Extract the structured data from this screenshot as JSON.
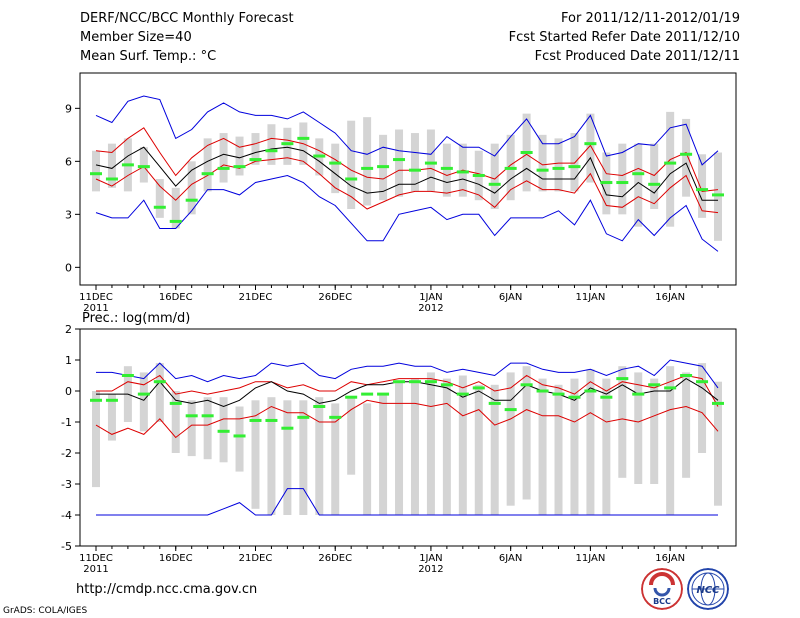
{
  "header": {
    "title": "DERF/NCC/BCC Monthly Forecast",
    "member_size": "Member Size=40",
    "variable": "Mean Surf. Temp.: °C",
    "forecast_range": "For 2011/12/11-2012/01/19",
    "started": "Fcst Started Refer Date 2011/12/10",
    "produced": "Fcst Produced Date 2011/12/11"
  },
  "footer": {
    "url": "http://cmdp.ncc.cma.gov.cn",
    "credit": "GrADS: COLA/IGES",
    "logo1_text": "BCC",
    "logo2_text": "NCC"
  },
  "colors": {
    "max": "#0000dd",
    "pct": "#dd0000",
    "mean": "#000000",
    "median": "#33ee33",
    "box": "#d4d4d4"
  },
  "chart_data": [
    {
      "type": "line",
      "title": "Mean Surf. Temp.: °C",
      "ylim": [
        -1,
        11
      ],
      "yticks": [
        0,
        3,
        6,
        9
      ],
      "xticks": [
        {
          "day": 0,
          "label": "11DEC",
          "sub": "2011"
        },
        {
          "day": 5,
          "label": "16DEC"
        },
        {
          "day": 10,
          "label": "21DEC"
        },
        {
          "day": 15,
          "label": "26DEC"
        },
        {
          "day": 21,
          "label": "1JAN",
          "sub": "2012"
        },
        {
          "day": 26,
          "label": "6JAN"
        },
        {
          "day": 31,
          "label": "11JAN"
        },
        {
          "day": 36,
          "label": "16JAN"
        }
      ],
      "days": 40,
      "box_low": [
        4.3,
        4.5,
        4.3,
        4.8,
        2.8,
        2.2,
        3.0,
        4.3,
        4.8,
        5.2,
        5.8,
        5.8,
        5.8,
        5.8,
        5.2,
        4.2,
        3.3,
        3.5,
        3.8,
        4.0,
        4.3,
        4.3,
        4.0,
        4.0,
        3.8,
        3.3,
        3.8,
        4.3,
        4.3,
        4.3,
        4.3,
        4.8,
        3.0,
        3.0,
        2.3,
        3.3,
        2.3,
        4.0,
        2.8,
        1.5
      ],
      "box_high": [
        6.6,
        7.0,
        7.3,
        6.8,
        5.0,
        4.5,
        6.0,
        7.3,
        7.6,
        7.4,
        7.6,
        8.1,
        7.9,
        8.2,
        7.3,
        7.0,
        8.3,
        8.5,
        7.5,
        7.8,
        7.6,
        7.8,
        7.0,
        7.0,
        6.6,
        7.0,
        7.5,
        8.7,
        7.5,
        7.3,
        7.6,
        8.7,
        6.5,
        7.0,
        7.0,
        7.0,
        8.8,
        8.4,
        6.4,
        6.5
      ],
      "median": [
        5.3,
        5.0,
        5.8,
        5.7,
        3.4,
        2.6,
        3.8,
        5.3,
        5.6,
        5.7,
        6.1,
        6.6,
        7.0,
        7.3,
        6.3,
        5.9,
        5.0,
        5.6,
        5.7,
        6.1,
        5.5,
        5.9,
        5.6,
        5.4,
        5.2,
        4.7,
        5.6,
        6.5,
        5.5,
        5.6,
        5.7,
        7.0,
        4.8,
        4.8,
        5.3,
        4.7,
        5.9,
        6.4,
        4.4,
        4.1
      ],
      "series": [
        {
          "name": "max",
          "color_key": "max",
          "values": [
            8.6,
            8.2,
            9.4,
            9.7,
            9.5,
            7.3,
            7.8,
            8.8,
            9.3,
            8.8,
            8.6,
            8.6,
            8.4,
            8.8,
            8.2,
            7.6,
            6.6,
            6.4,
            6.8,
            6.6,
            6.5,
            6.4,
            7.4,
            6.8,
            6.8,
            6.3,
            7.4,
            8.4,
            7.0,
            7.0,
            7.4,
            8.6,
            6.3,
            6.5,
            7.0,
            6.9,
            7.9,
            8.1,
            5.8,
            6.6
          ]
        },
        {
          "name": "p90",
          "color_key": "pct",
          "values": [
            6.6,
            6.5,
            7.3,
            7.9,
            6.5,
            5.2,
            6.2,
            6.9,
            7.3,
            6.8,
            7.0,
            7.3,
            7.2,
            7.0,
            6.6,
            6.1,
            5.5,
            5.1,
            5.0,
            5.5,
            5.5,
            5.6,
            5.2,
            5.5,
            5.3,
            5.0,
            5.8,
            6.4,
            5.8,
            5.9,
            5.9,
            6.9,
            5.3,
            5.2,
            5.6,
            5.2,
            6.1,
            6.5,
            4.3,
            4.4
          ]
        },
        {
          "name": "mean",
          "color_key": "mean",
          "values": [
            5.8,
            5.6,
            6.3,
            6.8,
            5.7,
            4.6,
            5.5,
            6.0,
            6.4,
            6.2,
            6.5,
            6.7,
            6.8,
            6.6,
            6.0,
            5.3,
            4.6,
            4.2,
            4.3,
            4.7,
            4.7,
            5.1,
            4.8,
            5.0,
            4.7,
            4.2,
            5.0,
            5.6,
            5.0,
            5.0,
            5.0,
            6.2,
            4.1,
            4.0,
            4.8,
            4.2,
            5.3,
            5.9,
            3.8,
            3.8
          ]
        },
        {
          "name": "p10",
          "color_key": "pct",
          "values": [
            5.0,
            4.6,
            5.2,
            5.7,
            4.6,
            3.8,
            4.7,
            5.2,
            5.8,
            5.6,
            6.0,
            6.1,
            6.2,
            6.0,
            5.3,
            4.5,
            4.0,
            3.3,
            3.7,
            4.1,
            4.3,
            4.3,
            4.2,
            4.4,
            4.1,
            3.4,
            4.4,
            4.9,
            4.4,
            4.4,
            4.2,
            5.3,
            3.5,
            3.4,
            4.0,
            3.6,
            4.5,
            5.2,
            3.2,
            3.1
          ]
        },
        {
          "name": "min",
          "color_key": "max",
          "values": [
            3.1,
            2.8,
            2.8,
            3.8,
            2.2,
            2.2,
            3.2,
            4.4,
            4.4,
            4.1,
            4.8,
            5.0,
            5.2,
            4.8,
            4.0,
            3.5,
            2.5,
            1.5,
            1.5,
            3.0,
            3.2,
            3.4,
            2.7,
            3.0,
            3.0,
            1.8,
            2.8,
            2.8,
            2.8,
            3.2,
            2.4,
            3.8,
            1.9,
            1.5,
            2.7,
            1.8,
            2.8,
            3.5,
            1.6,
            0.9
          ]
        }
      ]
    },
    {
      "type": "line",
      "title": "Prec.: log(mm/d)",
      "ylim": [
        -5,
        2
      ],
      "yticks": [
        -5,
        -4,
        -3,
        -2,
        -1,
        0,
        1,
        2
      ],
      "xticks": [
        {
          "day": 0,
          "label": "11DEC",
          "sub": "2011"
        },
        {
          "day": 5,
          "label": "16DEC"
        },
        {
          "day": 10,
          "label": "21DEC"
        },
        {
          "day": 15,
          "label": "26DEC"
        },
        {
          "day": 21,
          "label": "1JAN",
          "sub": "2012"
        },
        {
          "day": 26,
          "label": "6JAN"
        },
        {
          "day": 31,
          "label": "11JAN"
        },
        {
          "day": 36,
          "label": "16JAN"
        }
      ],
      "days": 40,
      "box_low": [
        -3.1,
        -1.6,
        -1.0,
        -1.3,
        -1.0,
        -2.0,
        -2.1,
        -2.2,
        -2.3,
        -2.6,
        -3.8,
        -4.0,
        -4.0,
        -4.0,
        -4.0,
        -4.0,
        -2.7,
        -4.0,
        -4.0,
        -4.0,
        -4.0,
        -4.0,
        -4.0,
        -4.0,
        -4.0,
        -4.0,
        -3.7,
        -3.5,
        -4.0,
        -4.0,
        -4.0,
        -4.0,
        -4.0,
        -2.8,
        -3.0,
        -3.0,
        -4.0,
        -2.8,
        -2.0,
        -3.7
      ],
      "box_high": [
        0.0,
        -0.1,
        0.8,
        0.6,
        0.9,
        0.0,
        -0.3,
        -0.2,
        -0.2,
        -0.5,
        -0.3,
        -0.2,
        -0.3,
        -0.3,
        -0.2,
        -0.4,
        -0.2,
        -0.4,
        -0.1,
        0.3,
        0.4,
        0.6,
        0.4,
        0.5,
        0.2,
        0.2,
        0.6,
        0.8,
        0.4,
        0.2,
        0.4,
        0.7,
        0.4,
        0.8,
        0.6,
        0.4,
        0.8,
        0.6,
        0.9,
        0.3
      ],
      "median": [
        -0.3,
        -0.3,
        0.5,
        -0.1,
        0.3,
        -0.4,
        -0.8,
        -0.8,
        -1.3,
        -1.45,
        -0.95,
        -0.95,
        -1.2,
        -0.85,
        -0.5,
        -0.85,
        -0.2,
        -0.1,
        -0.1,
        0.3,
        0.3,
        0.3,
        0.2,
        -0.1,
        0.1,
        -0.4,
        -0.6,
        0.2,
        0.0,
        -0.1,
        -0.2,
        0.0,
        -0.2,
        0.4,
        -0.1,
        0.2,
        0.1,
        0.5,
        0.3,
        -0.4
      ],
      "series": [
        {
          "name": "max",
          "color_key": "max",
          "values": [
            0.6,
            0.6,
            0.5,
            0.4,
            0.9,
            0.4,
            0.5,
            0.3,
            0.5,
            0.4,
            0.5,
            0.9,
            0.8,
            0.9,
            0.5,
            0.4,
            0.7,
            0.8,
            0.8,
            0.9,
            0.8,
            0.8,
            0.6,
            0.7,
            0.6,
            0.5,
            0.9,
            0.9,
            0.7,
            0.6,
            0.6,
            0.7,
            0.5,
            0.7,
            0.8,
            0.5,
            1.0,
            0.9,
            0.8,
            0.1
          ]
        },
        {
          "name": "p90",
          "color_key": "pct",
          "values": [
            0.0,
            0.0,
            0.3,
            0.2,
            0.5,
            -0.1,
            0.0,
            -0.1,
            0.0,
            0.1,
            0.3,
            0.3,
            0.1,
            0.2,
            0.0,
            0.0,
            0.3,
            0.2,
            0.3,
            0.4,
            0.4,
            0.4,
            0.3,
            0.1,
            0.3,
            0.0,
            0.1,
            0.5,
            0.2,
            0.1,
            -0.1,
            0.3,
            0.0,
            0.3,
            0.2,
            0.1,
            0.3,
            0.5,
            0.4,
            -0.5
          ]
        },
        {
          "name": "mean",
          "color_key": "mean",
          "values": [
            -0.1,
            -0.1,
            -0.1,
            -0.3,
            0.3,
            -0.3,
            -0.4,
            -0.3,
            -0.5,
            -0.3,
            0.1,
            0.3,
            0.0,
            -0.1,
            -0.4,
            -0.3,
            0.0,
            0.2,
            0.2,
            0.3,
            0.3,
            0.2,
            0.1,
            -0.2,
            0.0,
            -0.3,
            -0.3,
            0.2,
            0.0,
            -0.1,
            -0.3,
            0.1,
            -0.1,
            0.2,
            -0.1,
            0.0,
            0.0,
            0.4,
            0.1,
            -0.3
          ]
        },
        {
          "name": "p10",
          "color_key": "pct",
          "values": [
            -1.1,
            -1.4,
            -1.2,
            -1.4,
            -0.9,
            -1.5,
            -1.1,
            -1.1,
            -0.9,
            -0.9,
            -0.8,
            -0.5,
            -0.7,
            -0.7,
            -1.0,
            -1.0,
            -0.6,
            -0.3,
            -0.4,
            -0.4,
            -0.4,
            -0.5,
            -0.4,
            -0.8,
            -0.6,
            -1.1,
            -0.9,
            -0.6,
            -0.8,
            -0.8,
            -1.0,
            -0.7,
            -1.0,
            -0.9,
            -1.0,
            -0.8,
            -0.6,
            -0.5,
            -0.7,
            -1.3
          ]
        },
        {
          "name": "min",
          "color_key": "max",
          "values": [
            -4.0,
            -4.0,
            -4.0,
            -4.0,
            -4.0,
            -4.0,
            -4.0,
            -4.0,
            -3.8,
            -3.6,
            -4.0,
            -4.0,
            -3.15,
            -3.15,
            -4.0,
            -4.0,
            -4.0,
            -4.0,
            -4.0,
            -4.0,
            -4.0,
            -4.0,
            -4.0,
            -4.0,
            -4.0,
            -4.0,
            -4.0,
            -4.0,
            -4.0,
            -4.0,
            -4.0,
            -4.0,
            -4.0,
            -4.0,
            -4.0,
            -4.0,
            -4.0,
            -4.0,
            -4.0,
            -4.0
          ]
        }
      ]
    }
  ]
}
